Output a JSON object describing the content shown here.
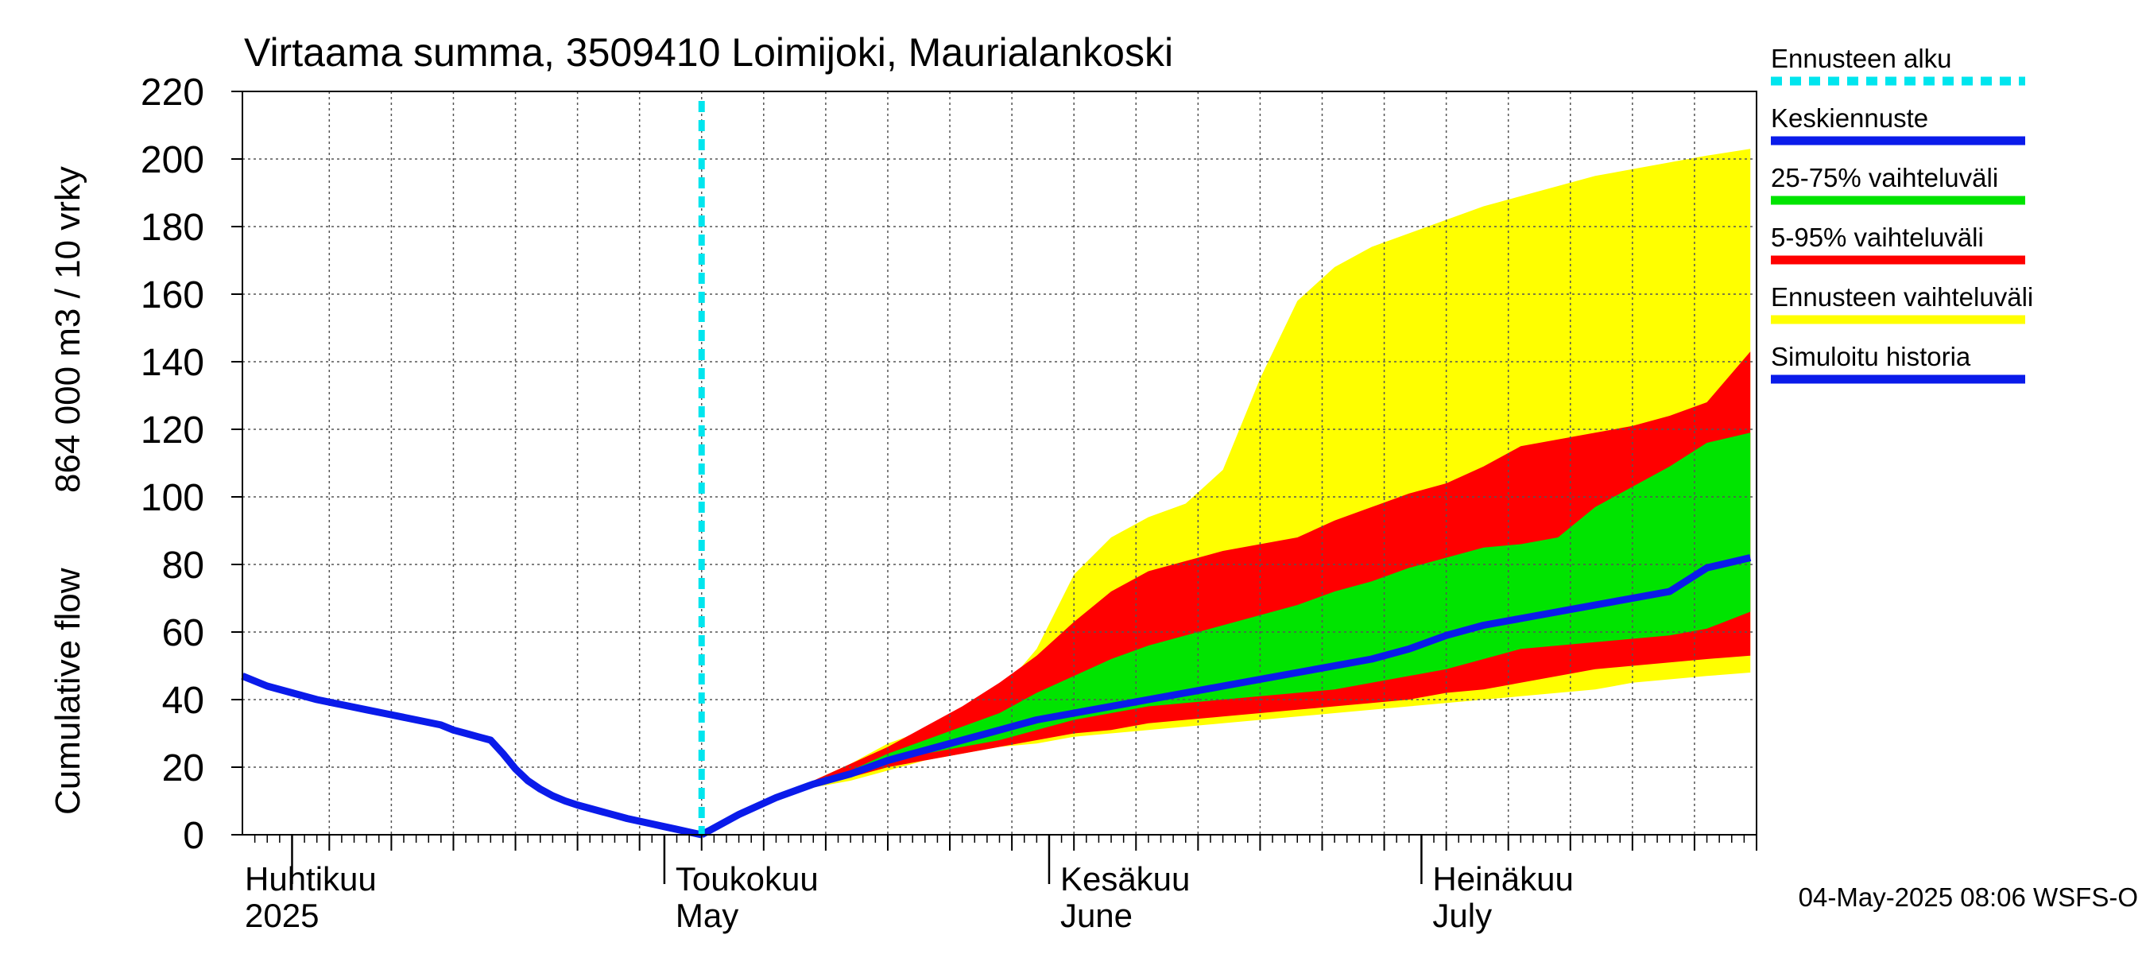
{
  "chart_data": {
    "type": "area",
    "title": "Virtaama summa, 3509410 Loimijoki, Maurialankoski",
    "ylabel_fi": "Cumulative flow",
    "ylabel_unit": "864 000 m3 / 10 vrky",
    "ylim": [
      0,
      220
    ],
    "y_ticks": [
      0,
      20,
      40,
      60,
      80,
      100,
      120,
      140,
      160,
      180,
      200,
      220
    ],
    "x_unit": "day_of_year",
    "xlim": [
      87,
      209
    ],
    "grid": true,
    "forecast_start_day": 124,
    "month_labels": [
      {
        "day": 91,
        "fi": "Huhtikuu",
        "en": "2025"
      },
      {
        "day": 121,
        "fi": "Toukokuu",
        "en": "May"
      },
      {
        "day": 152,
        "fi": "Kesäkuu",
        "en": "June"
      },
      {
        "day": 182,
        "fi": "Heinäkuu",
        "en": "July"
      }
    ],
    "x_days": [
      124,
      127,
      130,
      133,
      136,
      139,
      142,
      145,
      148,
      151,
      154,
      157,
      160,
      163,
      166,
      169,
      172,
      175,
      178,
      181,
      184,
      187,
      190,
      193,
      196,
      199,
      202,
      205,
      208.5
    ],
    "envelope_max": [
      0,
      6,
      12,
      16,
      21,
      27,
      31,
      35,
      42,
      55,
      77,
      88,
      94,
      98,
      108,
      135,
      158,
      168,
      174,
      178,
      182,
      186,
      189,
      192,
      195,
      197,
      199,
      201,
      203
    ],
    "envelope_min": [
      0,
      6,
      11,
      14,
      16,
      19,
      22,
      24,
      26,
      27,
      29,
      30,
      31,
      32,
      33,
      34,
      35,
      36,
      37,
      38,
      39,
      40,
      41,
      42,
      43,
      45,
      46,
      47,
      48
    ],
    "p5": [
      0,
      6,
      11,
      14,
      17,
      20,
      22,
      24,
      26,
      28,
      30,
      31,
      33,
      34,
      35,
      36,
      37,
      38,
      39,
      40,
      42,
      43,
      45,
      47,
      49,
      50,
      51,
      52,
      53
    ],
    "p95": [
      0,
      6,
      11.5,
      16,
      21,
      26,
      32,
      38,
      45,
      53,
      63,
      72,
      78,
      81,
      84,
      86,
      88,
      93,
      97,
      101,
      104,
      109,
      115,
      117,
      119,
      121,
      124,
      128,
      143
    ],
    "p25": [
      0,
      6,
      11,
      14.5,
      18,
      21,
      24,
      26,
      28,
      31,
      34,
      36,
      38,
      39,
      40,
      41,
      42,
      43,
      45,
      47,
      49,
      52,
      55,
      56,
      57,
      58,
      59,
      61,
      66
    ],
    "p75": [
      0,
      6,
      11.5,
      15.5,
      19,
      24,
      28,
      32,
      36,
      42,
      47,
      52,
      56,
      59,
      62,
      65,
      68,
      72,
      75,
      79,
      82,
      85,
      86,
      88,
      97,
      103,
      109,
      116,
      119
    ],
    "median": [
      0,
      6,
      11,
      15,
      18,
      22,
      25,
      28,
      31,
      34,
      36,
      38,
      40,
      42,
      44,
      46,
      48,
      50,
      52,
      55,
      59,
      62,
      64,
      66,
      68,
      70,
      72,
      79,
      82
    ],
    "history": {
      "x": [
        87,
        89,
        91,
        93,
        95,
        97,
        99,
        101,
        103,
        104,
        105,
        106,
        107,
        108,
        109,
        110,
        111,
        112,
        113,
        114,
        115,
        116,
        117,
        118,
        119,
        120,
        121,
        122,
        123,
        124
      ],
      "y": [
        47,
        44,
        42,
        40,
        38.5,
        37,
        35.5,
        34,
        32.5,
        31,
        30,
        29,
        28,
        24,
        19.5,
        16,
        13.5,
        11.5,
        10,
        8.8,
        7.8,
        6.8,
        5.8,
        4.8,
        4,
        3.2,
        2.4,
        1.6,
        0.8,
        0
      ]
    },
    "legend": [
      {
        "label": "Ennusteen alku",
        "color": "#00e5ee",
        "dashed": true
      },
      {
        "label": "Keskiennuste",
        "color": "#0a1bea",
        "dashed": false
      },
      {
        "label": "25-75% vaihteluväli",
        "color": "#00e400",
        "dashed": false
      },
      {
        "label": "5-95% vaihteluväli",
        "color": "#ff0000",
        "dashed": false
      },
      {
        "label": "Ennusteen vaihteluväli",
        "color": "#ffff00",
        "dashed": false
      },
      {
        "label": "Simuloitu historia",
        "color": "#0a1bea",
        "dashed": false
      }
    ],
    "legend_placement": "right",
    "footer": "04-May-2025 08:06 WSFS-O",
    "colors": {
      "yellow": "#ffff00",
      "red": "#ff0000",
      "green": "#00e400",
      "blue": "#0a1bea",
      "cyan": "#00e5ee"
    }
  }
}
